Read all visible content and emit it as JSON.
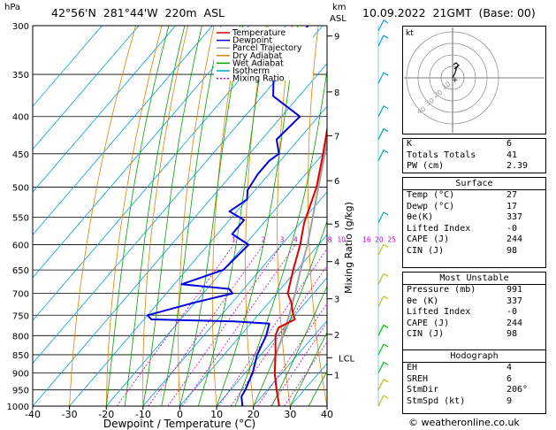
{
  "header": {
    "hpa_label": "hPa",
    "location": "42°56'N  281°44'W  220m  ASL",
    "km_label": "km",
    "asl_label": "ASL",
    "date": "10.09.2022  21GMT  (Base: 00)"
  },
  "chart_data": {
    "type": "skew-t",
    "xlabel": "Dewpoint / Temperature (°C)",
    "ylabel_right": "Mixing Ratio (g/kg)",
    "x_ticks": [
      -40,
      -30,
      -20,
      -10,
      0,
      10,
      20,
      30,
      40
    ],
    "pressure_levels": [
      300,
      350,
      400,
      450,
      500,
      550,
      600,
      650,
      700,
      750,
      800,
      850,
      900,
      950,
      1000
    ],
    "pressure_labels": [
      "300",
      "350",
      "400",
      "450",
      "500",
      "550",
      "600",
      "650",
      "700",
      "750",
      "800",
      "850",
      "900",
      "950",
      "1000"
    ],
    "km_ticks": [
      {
        "label": "9",
        "p": 310
      },
      {
        "label": "8",
        "p": 370
      },
      {
        "label": "7",
        "p": 425
      },
      {
        "label": "6",
        "p": 490
      },
      {
        "label": "5",
        "p": 562
      },
      {
        "label": "4",
        "p": 633
      },
      {
        "label": "3",
        "p": 712
      },
      {
        "label": "2",
        "p": 797
      },
      {
        "label": "LCL",
        "p": 858
      },
      {
        "label": "1",
        "p": 905
      }
    ],
    "mixing_ratios": [
      "1",
      "2",
      "3",
      "4",
      "8",
      "10",
      "16",
      "20",
      "25"
    ],
    "mixing_ratio_values": [
      1,
      2,
      3,
      4,
      8,
      10,
      16,
      20,
      25
    ],
    "legend": [
      {
        "name": "Temperature",
        "color": "#e00000"
      },
      {
        "name": "Dewpoint",
        "color": "#0000e0"
      },
      {
        "name": "Parcel Trajectory",
        "color": "#a0a0a0"
      },
      {
        "name": "Dry Adiabat",
        "color": "#e08000"
      },
      {
        "name": "Wet Adiabat",
        "color": "#00a000"
      },
      {
        "name": "Isotherm",
        "color": "#00a0e0"
      },
      {
        "name": "Mixing Ratio",
        "color": "#c000c0"
      }
    ],
    "temperature": [
      [
        1000,
        27
      ],
      [
        950,
        22.5
      ],
      [
        900,
        18
      ],
      [
        850,
        14
      ],
      [
        800,
        9.5
      ],
      [
        780,
        8.5
      ],
      [
        760,
        11
      ],
      [
        745,
        9
      ],
      [
        720,
        6
      ],
      [
        700,
        3
      ],
      [
        650,
        -1
      ],
      [
        600,
        -5
      ],
      [
        560,
        -9
      ],
      [
        500,
        -14
      ],
      [
        450,
        -20
      ],
      [
        400,
        -27
      ],
      [
        350,
        -34
      ],
      [
        300,
        -44
      ]
    ],
    "dewpoint": [
      [
        1000,
        17
      ],
      [
        970,
        14.5
      ],
      [
        950,
        14
      ],
      [
        900,
        12
      ],
      [
        850,
        9
      ],
      [
        800,
        7
      ],
      [
        770,
        5
      ],
      [
        765,
        -5
      ],
      [
        760,
        -28
      ],
      [
        750,
        -30
      ],
      [
        720,
        -20
      ],
      [
        700,
        -12
      ],
      [
        690,
        -14
      ],
      [
        680,
        -28
      ],
      [
        650,
        -20
      ],
      [
        600,
        -19
      ],
      [
        580,
        -26
      ],
      [
        555,
        -26
      ],
      [
        540,
        -32
      ],
      [
        520,
        -30
      ],
      [
        505,
        -32
      ],
      [
        480,
        -33
      ],
      [
        460,
        -33
      ],
      [
        450,
        -32
      ],
      [
        430,
        -36
      ],
      [
        400,
        -35
      ],
      [
        375,
        -47
      ],
      [
        350,
        -52
      ],
      [
        320,
        -54
      ],
      [
        300,
        -54
      ]
    ],
    "parcel": [
      [
        1000,
        27
      ],
      [
        950,
        22.5
      ],
      [
        900,
        18
      ],
      [
        858,
        14.5
      ],
      [
        800,
        11.5
      ],
      [
        750,
        8.5
      ],
      [
        700,
        5
      ],
      [
        650,
        1
      ],
      [
        600,
        -3
      ],
      [
        550,
        -8
      ],
      [
        500,
        -13.5
      ],
      [
        450,
        -19.5
      ],
      [
        400,
        -26.5
      ],
      [
        350,
        -34.5
      ],
      [
        300,
        -44
      ]
    ],
    "wind_barbs": [
      {
        "p": 305,
        "color": "#00a0e0"
      },
      {
        "p": 320,
        "color": "#00a0e0"
      },
      {
        "p": 360,
        "color": "#00a0e0"
      },
      {
        "p": 400,
        "color": "#00a0a0"
      },
      {
        "p": 430,
        "color": "#00a0a0"
      },
      {
        "p": 460,
        "color": "#00a0a0"
      },
      {
        "p": 560,
        "color": "#00a0a0"
      },
      {
        "p": 620,
        "color": "#c0c000"
      },
      {
        "p": 680,
        "color": "#c0c000"
      },
      {
        "p": 730,
        "color": "#c0c000"
      },
      {
        "p": 800,
        "color": "#00c000"
      },
      {
        "p": 850,
        "color": "#00c000"
      },
      {
        "p": 900,
        "color": "#00c000"
      },
      {
        "p": 950,
        "color": "#c0c000"
      },
      {
        "p": 1000,
        "color": "#c0c000"
      }
    ]
  },
  "hodograph": {
    "unit": "kt",
    "ring_labels": [
      "10",
      "20",
      "30",
      "40"
    ]
  },
  "indices": [
    {
      "label": "K",
      "value": "6"
    },
    {
      "label": "Totals Totals",
      "value": "41"
    },
    {
      "label": "PW (cm)",
      "value": "2.39"
    }
  ],
  "surface": {
    "title": "Surface",
    "rows": [
      {
        "label": "Temp (°C)",
        "value": "27"
      },
      {
        "label": "Dewp (°C)",
        "value": "17"
      },
      {
        "label": "θe(K)",
        "value": "337"
      },
      {
        "label": "Lifted Index",
        "value": "-0"
      },
      {
        "label": "CAPE (J)",
        "value": "244"
      },
      {
        "label": "CIN (J)",
        "value": "98"
      }
    ]
  },
  "most_unstable": {
    "title": "Most Unstable",
    "rows": [
      {
        "label": "Pressure (mb)",
        "value": "991"
      },
      {
        "label": "θe (K)",
        "value": "337"
      },
      {
        "label": "Lifted Index",
        "value": "-0"
      },
      {
        "label": "CAPE (J)",
        "value": "244"
      },
      {
        "label": "CIN (J)",
        "value": "98"
      }
    ]
  },
  "hodograph_stats": {
    "title": "Hodograph",
    "rows": [
      {
        "label": "EH",
        "value": "4"
      },
      {
        "label": "SREH",
        "value": "6"
      },
      {
        "label": "StmDir",
        "value": "206°"
      },
      {
        "label": "StmSpd (kt)",
        "value": "9"
      }
    ]
  },
  "copyright": "© weatheronline.co.uk"
}
